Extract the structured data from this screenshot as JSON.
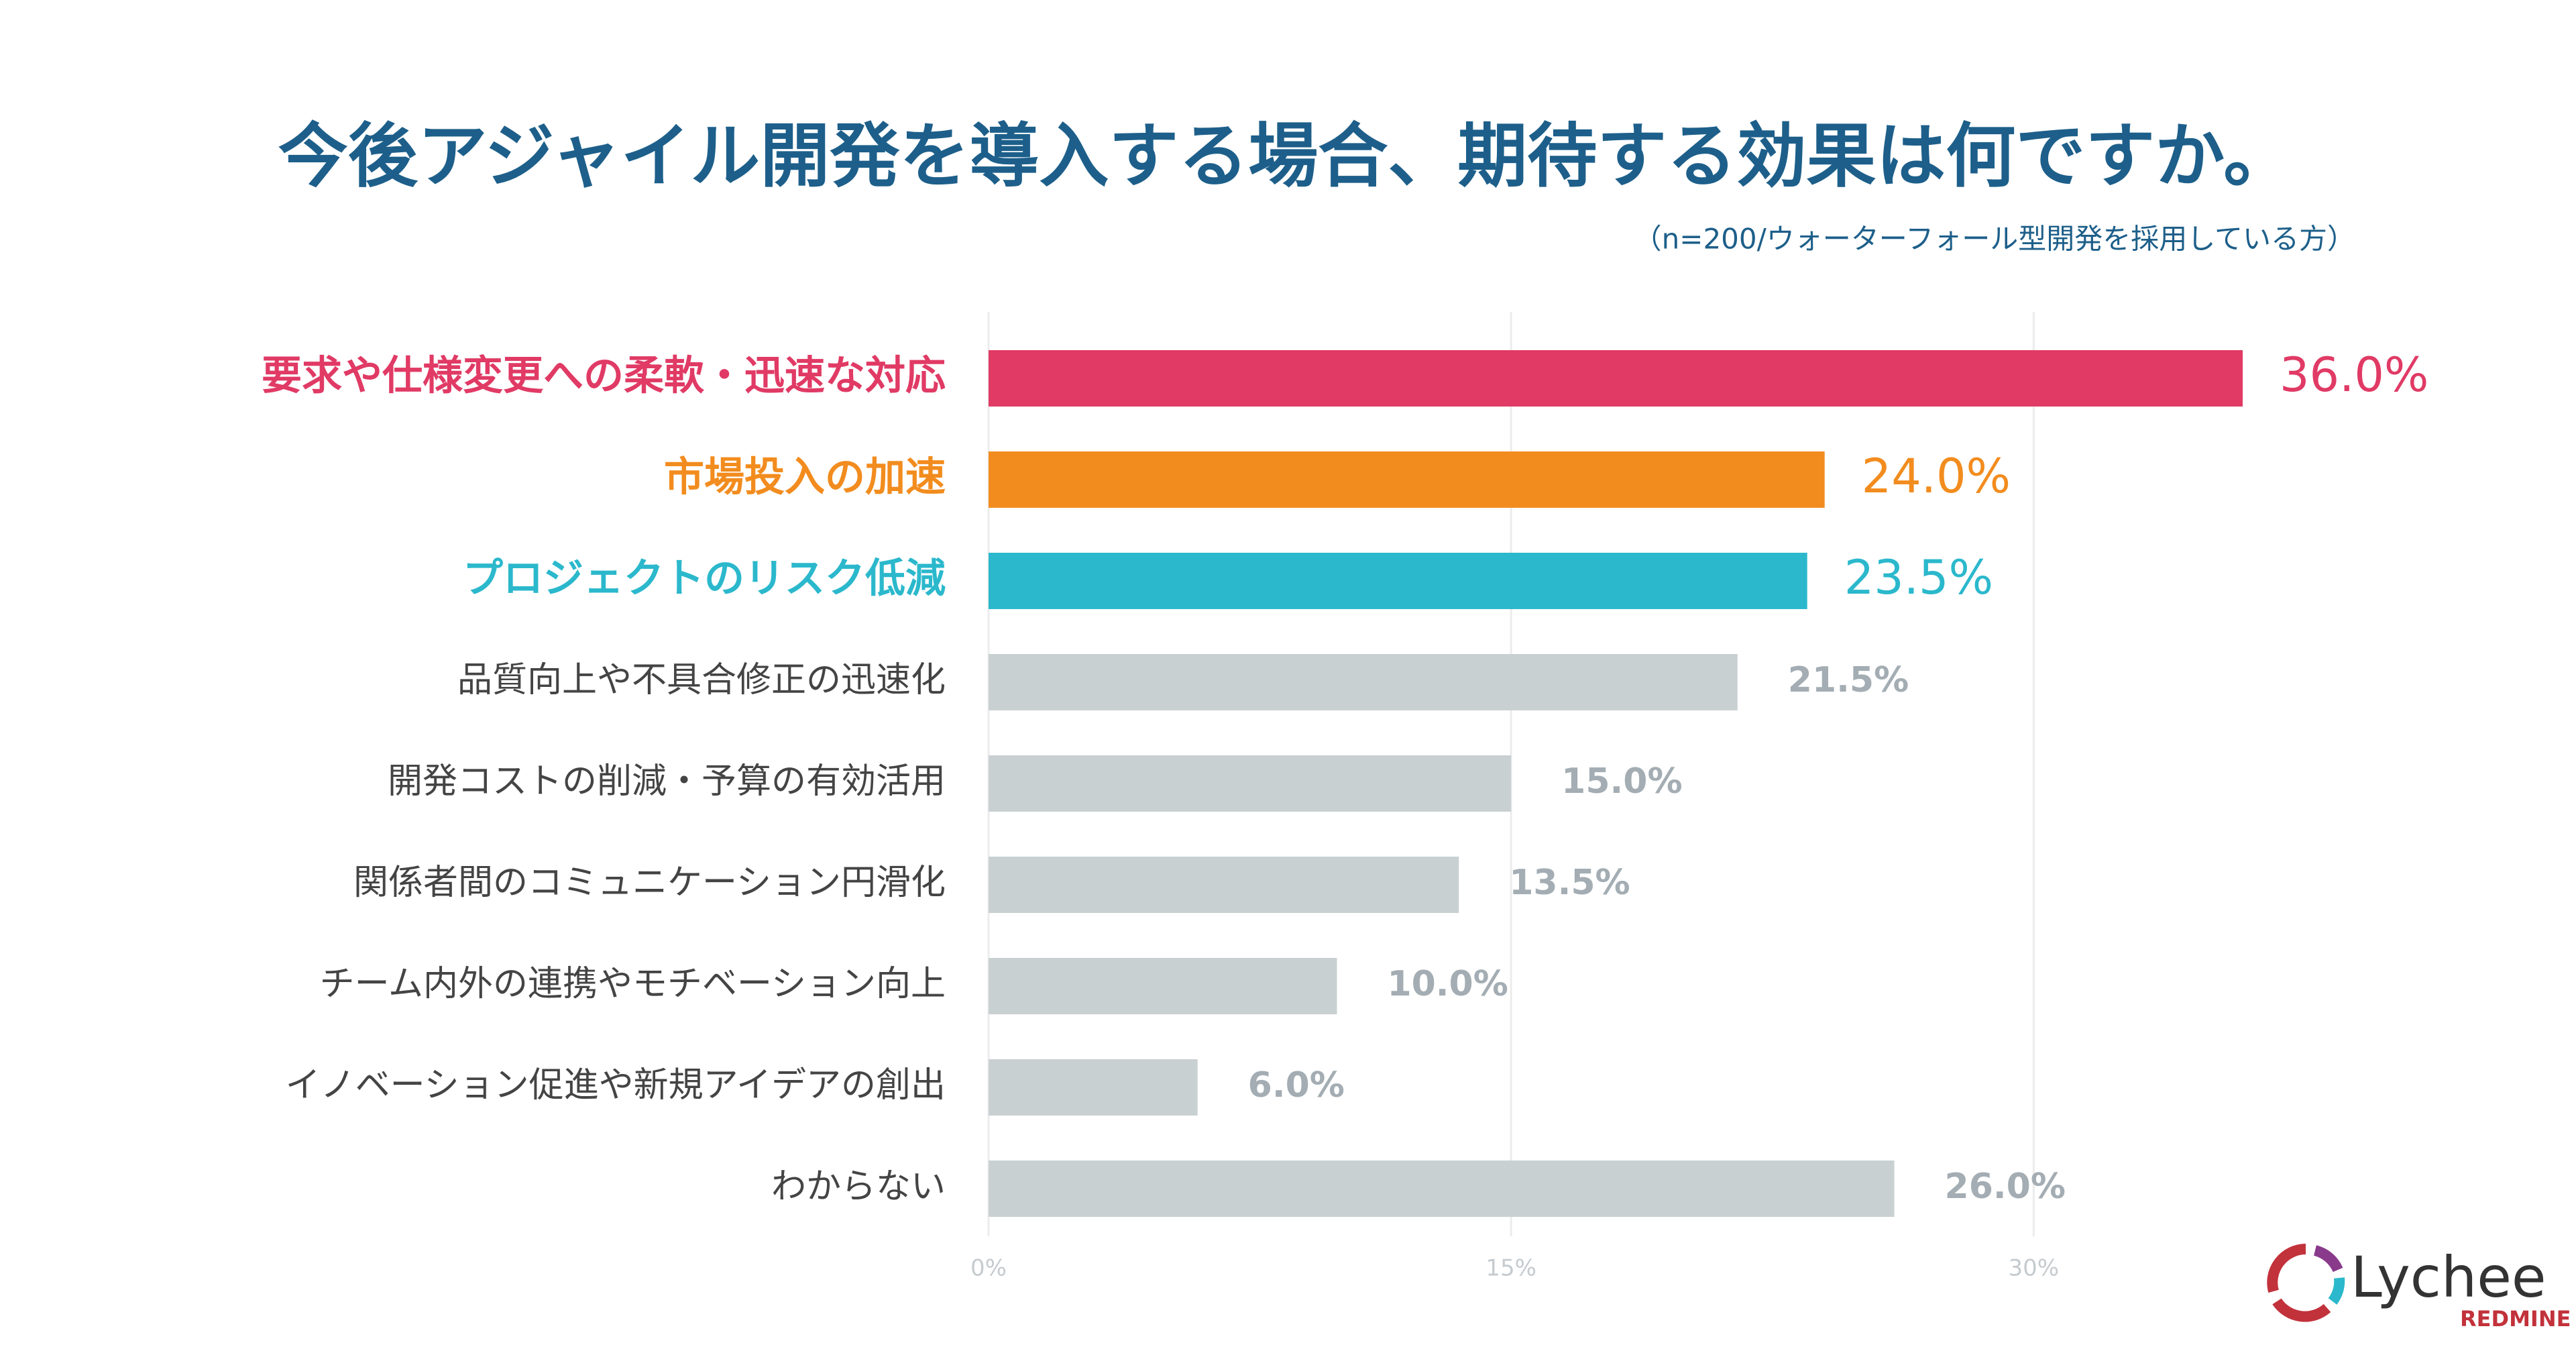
{
  "chart_data": {
    "type": "hbar",
    "title": "今後アジャイル開発を導入する場合、期待する効果は何ですか。",
    "subtitle": "（n=200/ウォーターフォール型開発を採用している方）",
    "categories": [
      "要求や仕様変更への柔軟・迅速な対応",
      "市場投入の加速",
      "プロジェクトのリスク低減",
      "品質向上や不具合修正の迅速化",
      "開発コストの削減・予算の有効活用",
      "関係者間のコミュニケーション円滑化",
      "チーム内外の連携やモチベーション向上",
      "イノベーション促進や新規アイデアの創出",
      "わからない"
    ],
    "values": [
      36.0,
      24.0,
      23.5,
      21.5,
      15.0,
      13.5,
      10.0,
      6.0,
      26.0
    ],
    "value_labels": [
      "36.0%",
      "24.0%",
      "23.5%",
      "21.5%",
      "15.0%",
      "13.5%",
      "10.0%",
      "6.0%",
      "26.0%"
    ],
    "colors": [
      "#e03a65",
      "#f28c1e",
      "#2bb8cc",
      "#c9d0d2",
      "#c9d0d2",
      "#c9d0d2",
      "#c9d0d2",
      "#c9d0d2",
      "#c9d0d2"
    ],
    "label_colors": [
      "#e03a65",
      "#f28c1e",
      "#2bb8cc",
      "#444444",
      "#444444",
      "#444444",
      "#444444",
      "#444444",
      "#444444"
    ],
    "value_label_colors": [
      "#e03a65",
      "#f28c1e",
      "#2bb8cc",
      "#a3adb3",
      "#a3adb3",
      "#a3adb3",
      "#a3adb3",
      "#a3adb3",
      "#a3adb3"
    ],
    "xlim": [
      0,
      36
    ],
    "xticks": [
      {
        "value": 0,
        "label": "0%"
      },
      {
        "value": 15,
        "label": "15%"
      },
      {
        "value": 30,
        "label": "30%"
      }
    ],
    "grid": true
  },
  "logo": {
    "name": "Lychee",
    "sub": "REDMINE"
  }
}
